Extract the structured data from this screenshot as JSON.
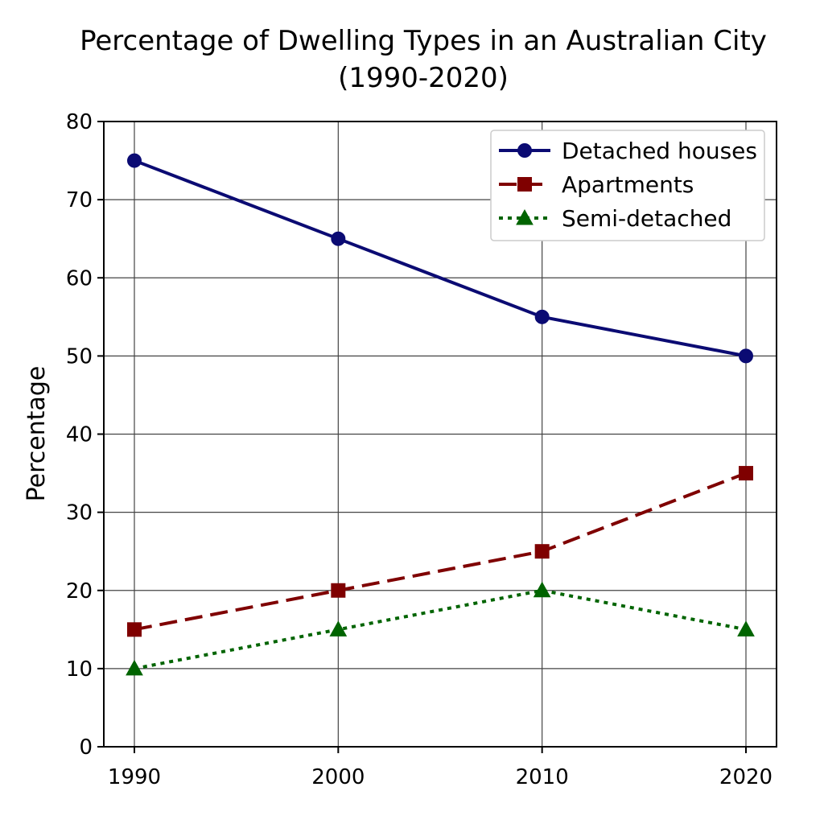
{
  "chart_data": {
    "type": "line",
    "title": "Percentage of Dwelling Types in an Australian City",
    "subtitle": "(1990-2020)",
    "xlabel": "",
    "ylabel": "Percentage",
    "x": [
      1990,
      2000,
      2010,
      2020
    ],
    "x_tick_labels": [
      "1990",
      "2000",
      "2010",
      "2020"
    ],
    "ylim": [
      0,
      80
    ],
    "y_ticks": [
      0,
      10,
      20,
      30,
      40,
      50,
      60,
      70,
      80
    ],
    "grid": true,
    "legend_position": "top-right",
    "series": [
      {
        "name": "Detached houses",
        "values": [
          75,
          65,
          55,
          50
        ],
        "color": "#0b0b73",
        "line_style": "solid",
        "marker": "circle"
      },
      {
        "name": "Apartments",
        "values": [
          15,
          20,
          25,
          35
        ],
        "color": "#7f0000",
        "line_style": "dashed",
        "marker": "square"
      },
      {
        "name": "Semi-detached",
        "values": [
          10,
          15,
          20,
          15
        ],
        "color": "#006400",
        "line_style": "dotted",
        "marker": "triangle"
      }
    ]
  }
}
